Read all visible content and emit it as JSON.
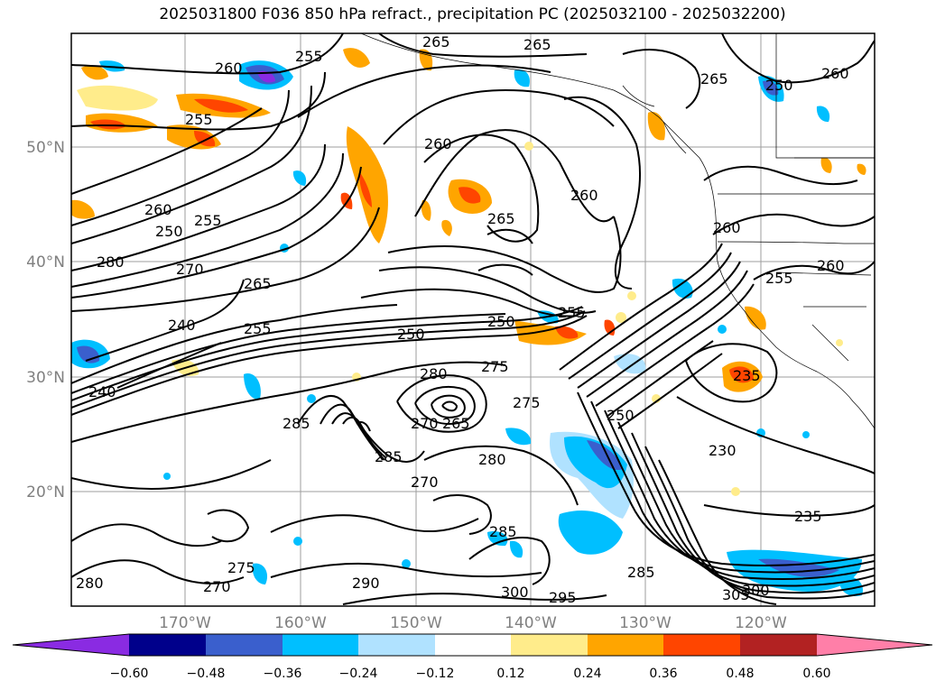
{
  "title": "2025031800 F036 850 hPa refract., precipitation PC (2025032100 - 2025032200)",
  "map": {
    "lat_ticks": [
      "50°N",
      "40°N",
      "30°N",
      "20°N"
    ],
    "lon_ticks": [
      "170°W",
      "160°W",
      "150°W",
      "140°W",
      "130°W",
      "120°W"
    ],
    "contour_labels": [
      "260",
      "255",
      "265",
      "260",
      "265",
      "260",
      "265",
      "260",
      "250",
      "255",
      "265",
      "280",
      "270",
      "260",
      "250",
      "255",
      "250",
      "240",
      "255",
      "250",
      "240",
      "275",
      "280",
      "285",
      "280",
      "275",
      "270",
      "265",
      "285",
      "265",
      "270",
      "275",
      "280",
      "285",
      "290",
      "300",
      "295",
      "285",
      "270",
      "250",
      "255",
      "235",
      "230",
      "235",
      "305",
      "300",
      "260",
      "255",
      "260"
    ]
  },
  "colorbar": {
    "labels": [
      "−0.60",
      "−0.48",
      "−0.36",
      "−0.24",
      "−0.12",
      "0.12",
      "0.24",
      "0.36",
      "0.48",
      "0.60"
    ],
    "colors": [
      "#8a2be2",
      "#00008b",
      "#3a5fcd",
      "#00bfff",
      "#b0e2ff",
      "#ffffff",
      "#ffec8b",
      "#ffa500",
      "#ff4500",
      "#b22222",
      "#ff7fa8"
    ]
  }
}
